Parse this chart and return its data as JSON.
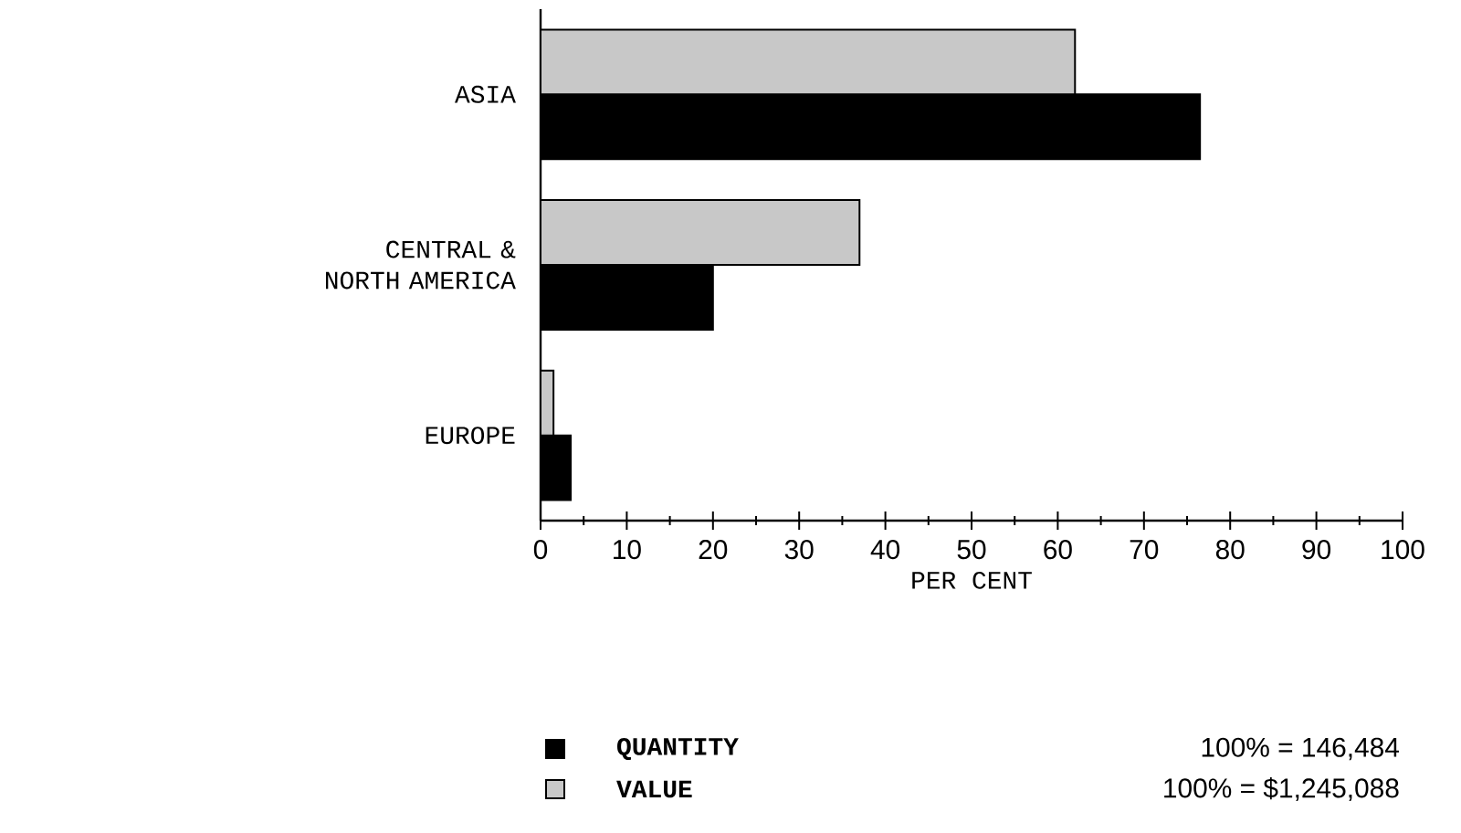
{
  "chart_data": {
    "type": "bar",
    "orientation": "horizontal",
    "categories": [
      "ASIA",
      "CENTRAL & NORTH AMERICA",
      "EUROPE"
    ],
    "series": [
      {
        "name": "QUANTITY",
        "color": "#000000",
        "values": [
          76.5,
          20,
          3.5
        ]
      },
      {
        "name": "VALUE",
        "color": "#c8c8c8",
        "values": [
          62,
          37,
          1.5
        ]
      }
    ],
    "xlim": [
      0,
      100
    ],
    "xticks": [
      0,
      10,
      20,
      30,
      40,
      50,
      60,
      70,
      80,
      90,
      100
    ],
    "xlabel": "PER CENT",
    "legend": "bottom",
    "grid": false,
    "annotations": [
      "100% = 146,484",
      "100% = $1,245,088"
    ]
  }
}
